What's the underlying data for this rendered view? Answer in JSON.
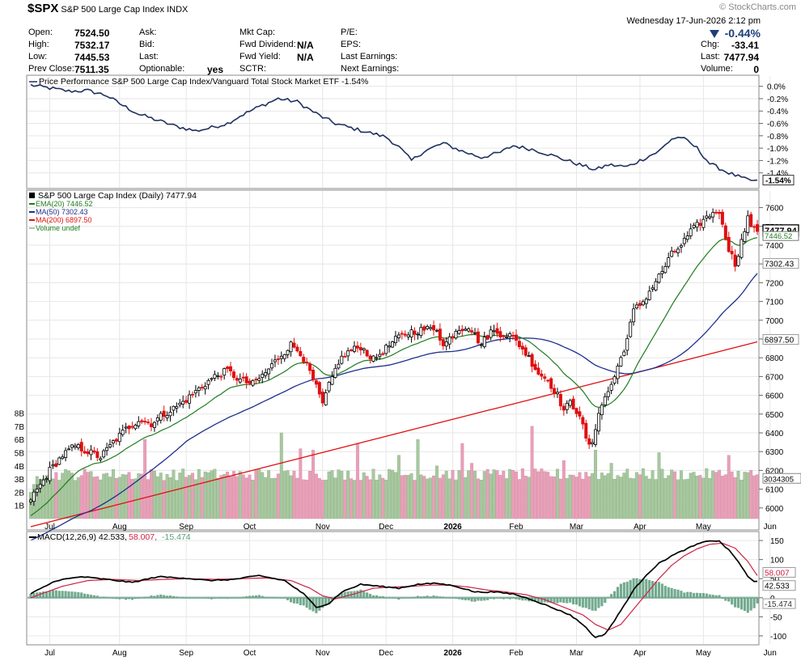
{
  "header": {
    "symbol": "$SPX",
    "name": "S&P 500 Large Cap Index",
    "exchange": "INDX",
    "watermark": "© StockCharts.com",
    "datetime": "Wednesday  17-Jun-2026  2:12 pm",
    "chg_pct": "-0.44%",
    "col1": [
      {
        "label": "Open:",
        "value": "7524.50"
      },
      {
        "label": "High:",
        "value": "7532.17"
      },
      {
        "label": "Low:",
        "value": "7445.53"
      },
      {
        "label": "Prev Close:",
        "value": "7511.35"
      }
    ],
    "col2": [
      {
        "label": "Ask:",
        "value": ""
      },
      {
        "label": "Bid:",
        "value": ""
      },
      {
        "label": "Last:",
        "value": ""
      },
      {
        "label": "Optionable:",
        "value": "yes"
      }
    ],
    "col3": [
      {
        "label": "Mkt Cap:",
        "value": ""
      },
      {
        "label": "Fwd Dividend:",
        "value": "N/A"
      },
      {
        "label": "Fwd Yield:",
        "value": "N/A"
      },
      {
        "label": "SCTR:",
        "value": ""
      }
    ],
    "col4": [
      {
        "label": "P/E:",
        "value": ""
      },
      {
        "label": "EPS:",
        "value": ""
      },
      {
        "label": "Last Earnings:",
        "value": ""
      },
      {
        "label": "Next Earnings:",
        "value": ""
      }
    ],
    "col5": [
      {
        "label": "Chg:",
        "value": "-33.41"
      },
      {
        "label": "Last:",
        "value": "7477.94"
      },
      {
        "label": "Volume:",
        "value": "0"
      }
    ]
  },
  "colors": {
    "up": "#000000",
    "down": "#e01010",
    "ema20": "#1e7d1e",
    "ma50": "#1f2f8f",
    "ma200": "#e01010",
    "vol_up": "#a8c8a0",
    "vol_down": "#e8a0b8",
    "macd": "#000000",
    "signal": "#cc2244",
    "hist": "#5b9b7b",
    "perf": "#1f2f5f",
    "grid": "#e6e6e6"
  },
  "chart_data": [
    {
      "type": "line",
      "id": "performance",
      "legend": "Price Performance S&P 500 Large Cap Index/Vanguard Total Stock Market ETF -1.54%",
      "last_label": "-1.54%",
      "ylim": [
        -1.6,
        0.1
      ],
      "y_ticks": [
        "0.0%",
        "-0.2%",
        "-0.4%",
        "-0.6%",
        "-0.8%",
        "-1.0%",
        "-1.2%",
        "-1.4%"
      ],
      "y_tick_values": [
        0.0,
        -0.2,
        -0.4,
        -0.6,
        -0.8,
        -1.0,
        -1.2,
        -1.4
      ],
      "keyframes": [
        [
          0,
          0.02
        ],
        [
          6,
          -0.03
        ],
        [
          12,
          -0.08
        ],
        [
          18,
          -0.07
        ],
        [
          24,
          -0.15
        ],
        [
          28,
          -0.28
        ],
        [
          34,
          -0.45
        ],
        [
          40,
          -0.55
        ],
        [
          46,
          -0.65
        ],
        [
          52,
          -0.72
        ],
        [
          56,
          -0.68
        ],
        [
          62,
          -0.6
        ],
        [
          66,
          -0.48
        ],
        [
          72,
          -0.33
        ],
        [
          78,
          -0.2
        ],
        [
          84,
          -0.25
        ],
        [
          88,
          -0.38
        ],
        [
          92,
          -0.5
        ],
        [
          96,
          -0.6
        ],
        [
          100,
          -0.66
        ],
        [
          106,
          -0.74
        ],
        [
          112,
          -0.82
        ],
        [
          116,
          -0.98
        ],
        [
          120,
          -1.2
        ],
        [
          124,
          -1.05
        ],
        [
          130,
          -0.92
        ],
        [
          136,
          -1.05
        ],
        [
          142,
          -1.15
        ],
        [
          148,
          -1.07
        ],
        [
          152,
          -0.96
        ],
        [
          158,
          -1.02
        ],
        [
          162,
          -1.08
        ],
        [
          168,
          -1.18
        ],
        [
          172,
          -1.25
        ],
        [
          178,
          -1.35
        ],
        [
          182,
          -1.27
        ],
        [
          188,
          -1.3
        ],
        [
          192,
          -1.2
        ],
        [
          198,
          -1.05
        ],
        [
          202,
          -0.85
        ],
        [
          205,
          -0.82
        ],
        [
          210,
          -1.0
        ],
        [
          214,
          -1.25
        ],
        [
          220,
          -1.4
        ],
        [
          225,
          -1.5
        ],
        [
          229,
          -1.54
        ]
      ]
    },
    {
      "type": "candlestick",
      "id": "price",
      "legend": "S&P 500 Large Cap Index (Daily) 7477.94",
      "indicators": [
        {
          "name": "EMA(20) 7446.52",
          "color_key": "ema20"
        },
        {
          "name": "MA(50) 7302.43",
          "color_key": "ma50"
        },
        {
          "name": "MA(200) 6897.50",
          "color_key": "ma200"
        },
        {
          "name": "Volume undef",
          "color_key": "vol_up"
        }
      ],
      "ylim": [
        5900,
        7650
      ],
      "y_ticks": [
        "7600",
        "7500",
        "7400",
        "7300",
        "7200",
        "7100",
        "7000",
        "6900",
        "6800",
        "6700",
        "6600",
        "6500",
        "6400",
        "6300",
        "6200",
        "6100",
        "6000"
      ],
      "y_tick_values": [
        7600,
        7500,
        7400,
        7300,
        7200,
        7100,
        7000,
        6900,
        6800,
        6700,
        6600,
        6500,
        6400,
        6300,
        6200,
        6100,
        6000
      ],
      "price_labels": [
        {
          "text": "7477.94",
          "value": 7477.94,
          "style": "last"
        },
        {
          "text": "7446.52",
          "value": 7446.52,
          "style": "ema"
        },
        {
          "text": "7302.43",
          "value": 7302.43,
          "style": "box"
        },
        {
          "text": "6897.50",
          "value": 6897.5,
          "style": "box"
        }
      ],
      "volume_label": "3034305",
      "volume_ticks": [
        "8B",
        "7B",
        "6B",
        "5B",
        "4B",
        "3B",
        "2B",
        "1B"
      ],
      "volume_tick_values": [
        8,
        7,
        6,
        5,
        4,
        3,
        2,
        1
      ],
      "volume_max": 9.2,
      "close_keyframes": [
        [
          0,
          6050
        ],
        [
          3,
          6120
        ],
        [
          6,
          6200
        ],
        [
          10,
          6280
        ],
        [
          14,
          6330
        ],
        [
          18,
          6300
        ],
        [
          22,
          6270
        ],
        [
          26,
          6350
        ],
        [
          30,
          6420
        ],
        [
          34,
          6470
        ],
        [
          38,
          6450
        ],
        [
          42,
          6500
        ],
        [
          46,
          6540
        ],
        [
          50,
          6590
        ],
        [
          54,
          6650
        ],
        [
          58,
          6700
        ],
        [
          62,
          6730
        ],
        [
          66,
          6680
        ],
        [
          70,
          6660
        ],
        [
          74,
          6720
        ],
        [
          78,
          6800
        ],
        [
          82,
          6870
        ],
        [
          85,
          6830
        ],
        [
          88,
          6720
        ],
        [
          90,
          6640
        ],
        [
          92,
          6550
        ],
        [
          94,
          6650
        ],
        [
          97,
          6780
        ],
        [
          100,
          6830
        ],
        [
          104,
          6860
        ],
        [
          108,
          6790
        ],
        [
          112,
          6850
        ],
        [
          116,
          6910
        ],
        [
          120,
          6940
        ],
        [
          124,
          6950
        ],
        [
          128,
          6960
        ],
        [
          130,
          6860
        ],
        [
          134,
          6950
        ],
        [
          138,
          6970
        ],
        [
          142,
          6870
        ],
        [
          145,
          6940
        ],
        [
          148,
          6930
        ],
        [
          151,
          6920
        ],
        [
          154,
          6870
        ],
        [
          157,
          6800
        ],
        [
          160,
          6720
        ],
        [
          163,
          6680
        ],
        [
          166,
          6600
        ],
        [
          168,
          6520
        ],
        [
          170,
          6560
        ],
        [
          173,
          6500
        ],
        [
          175,
          6360
        ],
        [
          177,
          6330
        ],
        [
          179,
          6520
        ],
        [
          182,
          6620
        ],
        [
          184,
          6700
        ],
        [
          186,
          6800
        ],
        [
          188,
          6900
        ],
        [
          190,
          7050
        ],
        [
          193,
          7100
        ],
        [
          196,
          7180
        ],
        [
          199,
          7260
        ],
        [
          202,
          7350
        ],
        [
          205,
          7400
        ],
        [
          208,
          7470
        ],
        [
          211,
          7520
        ],
        [
          214,
          7560
        ],
        [
          216,
          7590
        ],
        [
          218,
          7520
        ],
        [
          220,
          7380
        ],
        [
          222,
          7300
        ],
        [
          224,
          7420
        ],
        [
          226,
          7540
        ],
        [
          228,
          7480
        ],
        [
          229,
          7478
        ]
      ],
      "volume_spikes": [
        [
          0,
          5.3
        ],
        [
          3,
          5.0
        ],
        [
          68,
          6.0
        ],
        [
          124,
          3.2
        ],
        [
          152,
          6.5
        ],
        [
          162,
          5.3
        ],
        [
          171,
          5.2
        ],
        [
          197,
          5.7
        ],
        [
          222,
          4.8
        ],
        [
          233,
          6.0
        ],
        [
          244,
          4.0
        ],
        [
          250,
          3.6
        ],
        [
          261,
          5.7
        ],
        [
          266,
          4.2
        ],
        [
          285,
          3.6
        ],
        [
          303,
          7.0
        ],
        [
          322,
          4.4
        ],
        [
          340,
          5.2
        ],
        [
          350,
          4.2
        ],
        [
          378,
          5.0
        ],
        [
          420,
          4.8
        ]
      ]
    },
    {
      "type": "line",
      "id": "macd",
      "legend_main": "MACD(12,26,9) 42.533,",
      "legend_signal": "58.007,",
      "legend_hist": "-15.474",
      "ylim": [
        -115,
        165
      ],
      "y_ticks": [
        "150",
        "100",
        "50",
        "0",
        "-50",
        "-100"
      ],
      "y_tick_values": [
        150,
        100,
        50,
        0,
        -50,
        -100
      ],
      "value_labels": [
        {
          "text": "58.007",
          "value": 58.007,
          "style": "signal"
        },
        {
          "text": "42.533",
          "value": 42.533,
          "style": "macd"
        },
        {
          "text": "-15.474",
          "value": -15.474,
          "style": "hist"
        }
      ],
      "macd_keyframes": [
        [
          0,
          10
        ],
        [
          8,
          45
        ],
        [
          16,
          55
        ],
        [
          24,
          48
        ],
        [
          32,
          40
        ],
        [
          40,
          55
        ],
        [
          48,
          52
        ],
        [
          56,
          45
        ],
        [
          64,
          48
        ],
        [
          72,
          58
        ],
        [
          80,
          45
        ],
        [
          86,
          10
        ],
        [
          90,
          -25
        ],
        [
          94,
          -15
        ],
        [
          98,
          15
        ],
        [
          104,
          35
        ],
        [
          110,
          30
        ],
        [
          116,
          25
        ],
        [
          122,
          35
        ],
        [
          128,
          38
        ],
        [
          134,
          30
        ],
        [
          140,
          15
        ],
        [
          146,
          15
        ],
        [
          152,
          10
        ],
        [
          158,
          -5
        ],
        [
          164,
          -25
        ],
        [
          170,
          -45
        ],
        [
          174,
          -70
        ],
        [
          178,
          -105
        ],
        [
          181,
          -95
        ],
        [
          184,
          -60
        ],
        [
          187,
          -20
        ],
        [
          190,
          20
        ],
        [
          194,
          60
        ],
        [
          198,
          90
        ],
        [
          202,
          110
        ],
        [
          206,
          125
        ],
        [
          210,
          140
        ],
        [
          214,
          150
        ],
        [
          217,
          148
        ],
        [
          220,
          125
        ],
        [
          223,
          95
        ],
        [
          226,
          55
        ],
        [
          228,
          42
        ],
        [
          229,
          42.5
        ]
      ],
      "signal_keyframes": [
        [
          0,
          0
        ],
        [
          10,
          30
        ],
        [
          18,
          45
        ],
        [
          26,
          48
        ],
        [
          34,
          45
        ],
        [
          42,
          48
        ],
        [
          50,
          50
        ],
        [
          58,
          48
        ],
        [
          66,
          50
        ],
        [
          74,
          52
        ],
        [
          82,
          45
        ],
        [
          88,
          25
        ],
        [
          92,
          5
        ],
        [
          96,
          -3
        ],
        [
          102,
          10
        ],
        [
          108,
          25
        ],
        [
          114,
          28
        ],
        [
          120,
          30
        ],
        [
          126,
          33
        ],
        [
          132,
          33
        ],
        [
          138,
          28
        ],
        [
          144,
          20
        ],
        [
          150,
          15
        ],
        [
          156,
          8
        ],
        [
          162,
          -5
        ],
        [
          168,
          -25
        ],
        [
          174,
          -45
        ],
        [
          178,
          -70
        ],
        [
          182,
          -85
        ],
        [
          186,
          -70
        ],
        [
          190,
          -30
        ],
        [
          194,
          10
        ],
        [
          198,
          50
        ],
        [
          202,
          85
        ],
        [
          206,
          110
        ],
        [
          210,
          128
        ],
        [
          214,
          140
        ],
        [
          218,
          143
        ],
        [
          222,
          130
        ],
        [
          226,
          95
        ],
        [
          228,
          70
        ],
        [
          229,
          58
        ]
      ]
    }
  ],
  "x_axis": {
    "labels": [
      {
        "text": "Jul",
        "day": 6
      },
      {
        "text": "Aug",
        "day": 28
      },
      {
        "text": "Sep",
        "day": 49
      },
      {
        "text": "Oct",
        "day": 69
      },
      {
        "text": "Nov",
        "day": 92
      },
      {
        "text": "Dec",
        "day": 112
      },
      {
        "text": "2026",
        "day": 133,
        "bold": true
      },
      {
        "text": "Feb",
        "day": 153
      },
      {
        "text": "Mar",
        "day": 172
      },
      {
        "text": "Apr",
        "day": 192
      },
      {
        "text": "May",
        "day": 212
      },
      {
        "text": "Jun",
        "day": 233
      }
    ],
    "total_days": 230
  }
}
